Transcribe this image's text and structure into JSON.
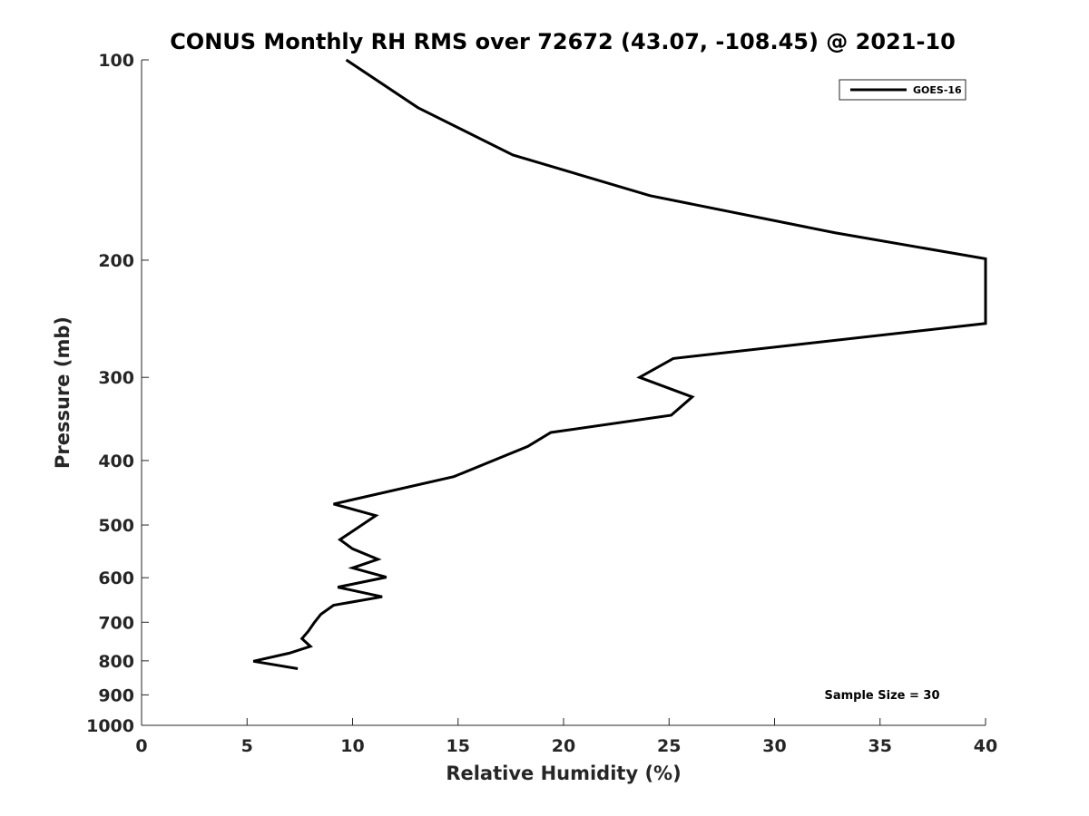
{
  "chart_data": {
    "type": "line",
    "title": "CONUS Monthly RH RMS over 72672 (43.07, -108.45) @ 2021-10",
    "xlabel": "Relative Humidity (%)",
    "ylabel": "Pressure (mb)",
    "xlim": [
      0,
      40
    ],
    "ylim": [
      100,
      1000
    ],
    "y_scale": "log",
    "y_reversed": true,
    "grid": false,
    "x_ticks": [
      0,
      5,
      10,
      15,
      20,
      25,
      30,
      35,
      40
    ],
    "x_tick_labels": [
      "0",
      "5",
      "10",
      "15",
      "20",
      "25",
      "30",
      "35",
      "40"
    ],
    "y_ticks": [
      100,
      200,
      300,
      400,
      500,
      600,
      700,
      800,
      900,
      1000
    ],
    "y_tick_labels": [
      "100",
      "200",
      "300",
      "400",
      "500",
      "600",
      "700",
      "800",
      "900",
      "1000"
    ],
    "legend_position": "top-right",
    "annotation": "Sample Size = 30",
    "series": [
      {
        "name": "GOES-16",
        "color": "#000000",
        "points": [
          {
            "x": 9.7,
            "p": 100
          },
          {
            "x": 13.1,
            "p": 118
          },
          {
            "x": 17.6,
            "p": 139
          },
          {
            "x": 24.1,
            "p": 160
          },
          {
            "x": 32.9,
            "p": 182
          },
          {
            "x": 40,
            "p": 199
          },
          {
            "x": 40,
            "p": 249
          },
          {
            "x": 25.2,
            "p": 281
          },
          {
            "x": 23.6,
            "p": 300
          },
          {
            "x": 26.1,
            "p": 321
          },
          {
            "x": 25.1,
            "p": 342
          },
          {
            "x": 19.4,
            "p": 363
          },
          {
            "x": 18.3,
            "p": 381
          },
          {
            "x": 14.8,
            "p": 423
          },
          {
            "x": 9.1,
            "p": 465
          },
          {
            "x": 11.1,
            "p": 484
          },
          {
            "x": 9.4,
            "p": 526
          },
          {
            "x": 10.0,
            "p": 543
          },
          {
            "x": 11.2,
            "p": 563
          },
          {
            "x": 10.0,
            "p": 580
          },
          {
            "x": 11.6,
            "p": 599
          },
          {
            "x": 9.3,
            "p": 620
          },
          {
            "x": 11.4,
            "p": 641
          },
          {
            "x": 9.1,
            "p": 660
          },
          {
            "x": 8.5,
            "p": 681
          },
          {
            "x": 8.2,
            "p": 700
          },
          {
            "x": 7.9,
            "p": 722
          },
          {
            "x": 7.6,
            "p": 741
          },
          {
            "x": 8.0,
            "p": 761
          },
          {
            "x": 7.0,
            "p": 779
          },
          {
            "x": 5.3,
            "p": 801
          },
          {
            "x": 7.4,
            "p": 822
          }
        ]
      }
    ]
  }
}
